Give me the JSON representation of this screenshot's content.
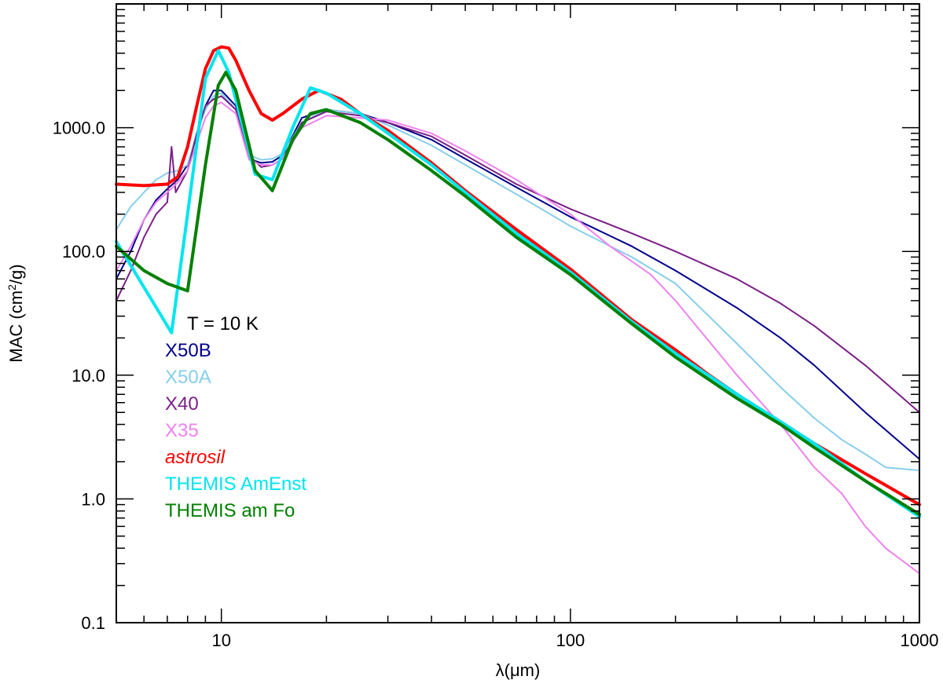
{
  "chart_data": {
    "type": "line",
    "title": "",
    "xlabel": "λ(μm)",
    "ylabel": "MAC (cm²/g)",
    "ylabel_main": "MAC (cm",
    "ylabel_sup": "2",
    "ylabel_end": "/g)",
    "xscale": "log",
    "yscale": "log",
    "xlim": [
      5,
      1000
    ],
    "ylim": [
      0.1,
      10000
    ],
    "x_ticks": [
      {
        "value": 10,
        "label": "10"
      },
      {
        "value": 100,
        "label": "100"
      },
      {
        "value": 1000,
        "label": "1000"
      }
    ],
    "y_ticks": [
      {
        "value": 0.1,
        "label": "0.1"
      },
      {
        "value": 1,
        "label": "1.0"
      },
      {
        "value": 10,
        "label": "10.0"
      },
      {
        "value": 100,
        "label": "100.0"
      },
      {
        "value": 1000,
        "label": "1000.0"
      }
    ],
    "annotation": "T = 10 K",
    "legend_position": "left-middle",
    "series": [
      {
        "name": "X50B",
        "color": "#00008b",
        "width": 2,
        "italic": false,
        "x": [
          5,
          5.5,
          6,
          6.5,
          7,
          7.5,
          8,
          8.5,
          9,
          9.5,
          10,
          11,
          12,
          13,
          14,
          15,
          17,
          20,
          25,
          30,
          40,
          50,
          70,
          100,
          150,
          200,
          300,
          400,
          500,
          700,
          1000
        ],
        "y": [
          60,
          100,
          180,
          260,
          320,
          380,
          500,
          850,
          1500,
          2000,
          2000,
          1500,
          560,
          520,
          530,
          600,
          1200,
          1400,
          1300,
          1100,
          800,
          560,
          330,
          190,
          110,
          70,
          35,
          20,
          12,
          5,
          2.1
        ]
      },
      {
        "name": "X50A",
        "color": "#87ceeb",
        "width": 2,
        "italic": false,
        "x": [
          5,
          5.5,
          6,
          6.5,
          7,
          7.5,
          8,
          8.5,
          9,
          9.5,
          10,
          11,
          12,
          13,
          14,
          15,
          17,
          20,
          25,
          30,
          40,
          50,
          70,
          100,
          150,
          200,
          300,
          400,
          500,
          600,
          700,
          800,
          1000
        ],
        "y": [
          150,
          230,
          300,
          380,
          430,
          450,
          500,
          900,
          1400,
          1800,
          1900,
          1400,
          600,
          550,
          560,
          620,
          1100,
          1400,
          1300,
          1050,
          720,
          500,
          290,
          160,
          90,
          55,
          18,
          8,
          4.5,
          3,
          2.3,
          1.8,
          1.7
        ]
      },
      {
        "name": "X40",
        "color": "#7b1f87",
        "width": 2,
        "italic": false,
        "x": [
          5,
          5.5,
          6,
          6.5,
          7,
          7.2,
          7.4,
          8,
          8.5,
          9,
          9.5,
          10,
          11,
          12,
          13,
          14,
          15,
          17,
          20,
          25,
          30,
          40,
          50,
          70,
          100,
          150,
          200,
          300,
          400,
          500,
          700,
          1000
        ],
        "y": [
          40,
          70,
          130,
          200,
          250,
          700,
          300,
          450,
          900,
          1500,
          1700,
          1800,
          1400,
          600,
          480,
          500,
          560,
          1100,
          1350,
          1250,
          1100,
          850,
          600,
          350,
          220,
          140,
          100,
          60,
          38,
          25,
          12,
          5
        ]
      },
      {
        "name": "X35",
        "color": "#ee82ee",
        "width": 2,
        "italic": false,
        "x": [
          5,
          5.5,
          6,
          6.5,
          7,
          7.5,
          8,
          8.5,
          9,
          9.5,
          10,
          11,
          12,
          13,
          14,
          15,
          17,
          20,
          25,
          30,
          40,
          50,
          70,
          100,
          130,
          170,
          200,
          300,
          400,
          500,
          600,
          700,
          800,
          1000
        ],
        "y": [
          70,
          110,
          180,
          250,
          300,
          360,
          450,
          750,
          1200,
          1500,
          1600,
          1300,
          550,
          500,
          500,
          560,
          1000,
          1250,
          1200,
          1150,
          900,
          650,
          380,
          200,
          110,
          65,
          40,
          10,
          4,
          1.8,
          1.1,
          0.6,
          0.4,
          0.25
        ]
      },
      {
        "name": "astrosil",
        "color": "#ff0000",
        "width": 4,
        "italic": true,
        "x": [
          5,
          6,
          7,
          7.5,
          8,
          8.5,
          9,
          9.5,
          10,
          10.5,
          11,
          12,
          13,
          14,
          15,
          17,
          19,
          22,
          25,
          30,
          40,
          50,
          70,
          100,
          150,
          200,
          250,
          300,
          400,
          500,
          700,
          1000
        ],
        "y": [
          350,
          340,
          350,
          400,
          700,
          1500,
          3000,
          4200,
          4500,
          4400,
          3500,
          2000,
          1300,
          1150,
          1300,
          1700,
          2000,
          1700,
          1300,
          950,
          520,
          310,
          150,
          72,
          28,
          16,
          10,
          7,
          4.2,
          2.8,
          1.6,
          0.9
        ]
      },
      {
        "name": "THEMIS AmEnst",
        "color": "#00e5ee",
        "width": 4,
        "italic": false,
        "x": [
          5,
          7.2,
          8,
          9,
          9.8,
          10.5,
          12.5,
          14,
          16,
          18,
          20,
          25,
          30,
          40,
          50,
          70,
          100,
          150,
          200,
          300,
          400,
          500,
          700,
          1000
        ],
        "y": [
          120,
          22,
          200,
          2500,
          4200,
          2800,
          420,
          380,
          1000,
          2100,
          1900,
          1300,
          900,
          500,
          300,
          140,
          68,
          27,
          15,
          7,
          4.2,
          2.8,
          1.4,
          0.72
        ]
      },
      {
        "name": "THEMIS am Fo",
        "color": "#008000",
        "width": 4,
        "italic": false,
        "x": [
          5,
          6,
          7,
          8,
          9,
          9.8,
          10.3,
          11,
          12.5,
          14,
          16,
          18,
          20,
          25,
          30,
          40,
          50,
          70,
          100,
          150,
          200,
          300,
          400,
          500,
          700,
          1000
        ],
        "y": [
          110,
          70,
          55,
          48,
          500,
          2200,
          2800,
          2000,
          450,
          310,
          800,
          1300,
          1400,
          1100,
          800,
          450,
          280,
          130,
          65,
          26,
          14,
          6.5,
          4,
          2.6,
          1.4,
          0.75
        ]
      }
    ]
  }
}
